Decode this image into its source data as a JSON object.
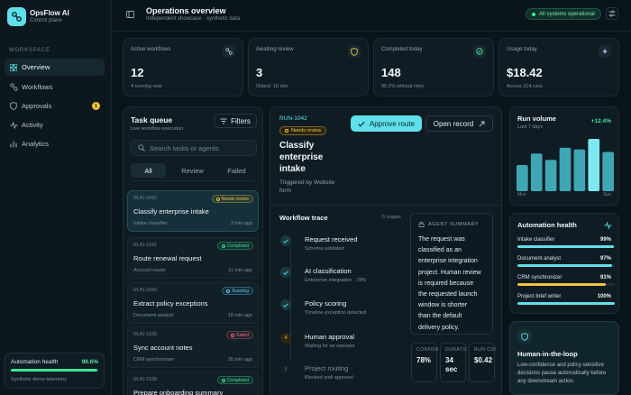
{
  "brand": {
    "title": "OpsFlow AI",
    "subtitle": "Control plane"
  },
  "sidebar": {
    "section_label": "WORKSPACE",
    "items": [
      {
        "label": "Overview",
        "icon": "grid-icon"
      },
      {
        "label": "Workflows",
        "icon": "workflow-icon"
      },
      {
        "label": "Approvals",
        "icon": "shield-icon",
        "badge": "1"
      },
      {
        "label": "Activity",
        "icon": "pulse-icon"
      },
      {
        "label": "Analytics",
        "icon": "chart-icon"
      }
    ],
    "health": {
      "label": "Automation health",
      "value": "98.6%",
      "fraction": 0.986,
      "subtitle": "Synthetic demo telemetry"
    }
  },
  "header": {
    "title": "Operations overview",
    "subtitle": "Independent showcase · synthetic data",
    "status": "All systems operational"
  },
  "stats": [
    {
      "label": "Active workflows",
      "value": "12",
      "sub": "4 running now",
      "icon": "workflow-icon"
    },
    {
      "label": "Awaiting review",
      "value": "3",
      "sub": "Oldest: 18 min",
      "icon": "shield-icon"
    },
    {
      "label": "Completed today",
      "value": "148",
      "sub": "96.2% without retry",
      "icon": "check-circle-icon"
    },
    {
      "label": "Usage today",
      "value": "$18.42",
      "sub": "Across 214 runs",
      "icon": "sparkle-icon"
    }
  ],
  "task_queue": {
    "title": "Task queue",
    "subtitle": "Live workflow execution",
    "filters_label": "Filters",
    "search_placeholder": "Search tasks or agents",
    "tabs": [
      "All",
      "Review",
      "Failed"
    ],
    "tasks": [
      {
        "id": "RUN-1042",
        "title": "Classify enterprise intake",
        "agent": "Intake classifier",
        "time": "3 min ago",
        "status": "Needs review",
        "color": "#f2c43a"
      },
      {
        "id": "RUN-1041",
        "title": "Route renewal request",
        "agent": "Account router",
        "time": "11 min ago",
        "status": "Completed",
        "color": "#3ee59a"
      },
      {
        "id": "RUN-1040",
        "title": "Extract policy exceptions",
        "agent": "Document analyst",
        "time": "18 min ago",
        "status": "Running",
        "color": "#5fd0f0"
      },
      {
        "id": "RUN-1039",
        "title": "Sync account notes",
        "agent": "CRM synchronizer",
        "time": "26 min ago",
        "status": "Failed",
        "color": "#f06a7a"
      },
      {
        "id": "RUN-1038",
        "title": "Prepare onboarding summary",
        "agent": "",
        "time": "",
        "status": "Completed",
        "color": "#3ee59a"
      }
    ]
  },
  "detail": {
    "run_id": "RUN-1042",
    "status": "Needs review",
    "title_lines": [
      "Classify",
      "enterprise",
      "intake"
    ],
    "trigger_lines": [
      "Triggered by Website",
      "form"
    ],
    "approve_label": "Approve route",
    "open_label": "Open record",
    "trace_title": "Workflow trace",
    "trace_count": "5 stages",
    "steps": [
      {
        "title": "Request received",
        "sub": "Schema validated",
        "state": "done",
        "marker": ""
      },
      {
        "title": "AI classification",
        "sub": "Enterprise integration · 78%",
        "state": "done",
        "marker": ""
      },
      {
        "title": "Policy scoring",
        "sub": "Timeline exception detected",
        "state": "done",
        "marker": ""
      },
      {
        "title": "Human approval",
        "sub": "Waiting for an operator",
        "state": "active",
        "marker": "4"
      },
      {
        "title": "Project routing",
        "sub": "Blocked until approval",
        "state": "pending",
        "marker": "5"
      }
    ],
    "summary_label": "AGENT SUMMARY",
    "summary_lines": [
      "The request was",
      "classified as an",
      "enterprise integration",
      "project. Human review",
      "is required because",
      "the requested launch",
      "window is shorter",
      "than the default",
      "delivery policy."
    ],
    "metrics": [
      {
        "label": "CONFIDENCE",
        "lines": [
          "78%"
        ]
      },
      {
        "label": "DURATION",
        "lines": [
          "34",
          "sec"
        ]
      },
      {
        "label": "RUN COST",
        "lines": [
          "$0.42"
        ]
      }
    ]
  },
  "run_volume": {
    "title": "Run volume",
    "subtitle": "Last 7 days",
    "delta": "+12.4%",
    "x_start": "Mon",
    "x_end": "Sun",
    "chart_data": {
      "type": "bar",
      "categories": [
        "Mon",
        "Tue",
        "Wed",
        "Thu",
        "Fri",
        "Sat",
        "Sun"
      ],
      "values": [
        0.5,
        0.72,
        0.6,
        0.83,
        0.8,
        1.0,
        0.75
      ],
      "xlabel": "",
      "ylabel": ""
    }
  },
  "automation_health": {
    "title": "Automation health",
    "rows": [
      {
        "label": "Intake classifier",
        "value": "99%",
        "fraction": 0.99,
        "color": "#5fe0ea"
      },
      {
        "label": "Document analyst",
        "value": "97%",
        "fraction": 0.97,
        "color": "#5fe0ea"
      },
      {
        "label": "CRM synchronizer",
        "value": "91%",
        "fraction": 0.91,
        "color": "#f2c43a"
      },
      {
        "label": "Project brief writer",
        "value": "100%",
        "fraction": 1.0,
        "color": "#5fe0ea"
      }
    ]
  },
  "hitl": {
    "title": "Human-in-the-loop",
    "lines": [
      "Low-confidence and policy-sensitive",
      "decisions pause automatically before",
      "any downstream action."
    ]
  }
}
